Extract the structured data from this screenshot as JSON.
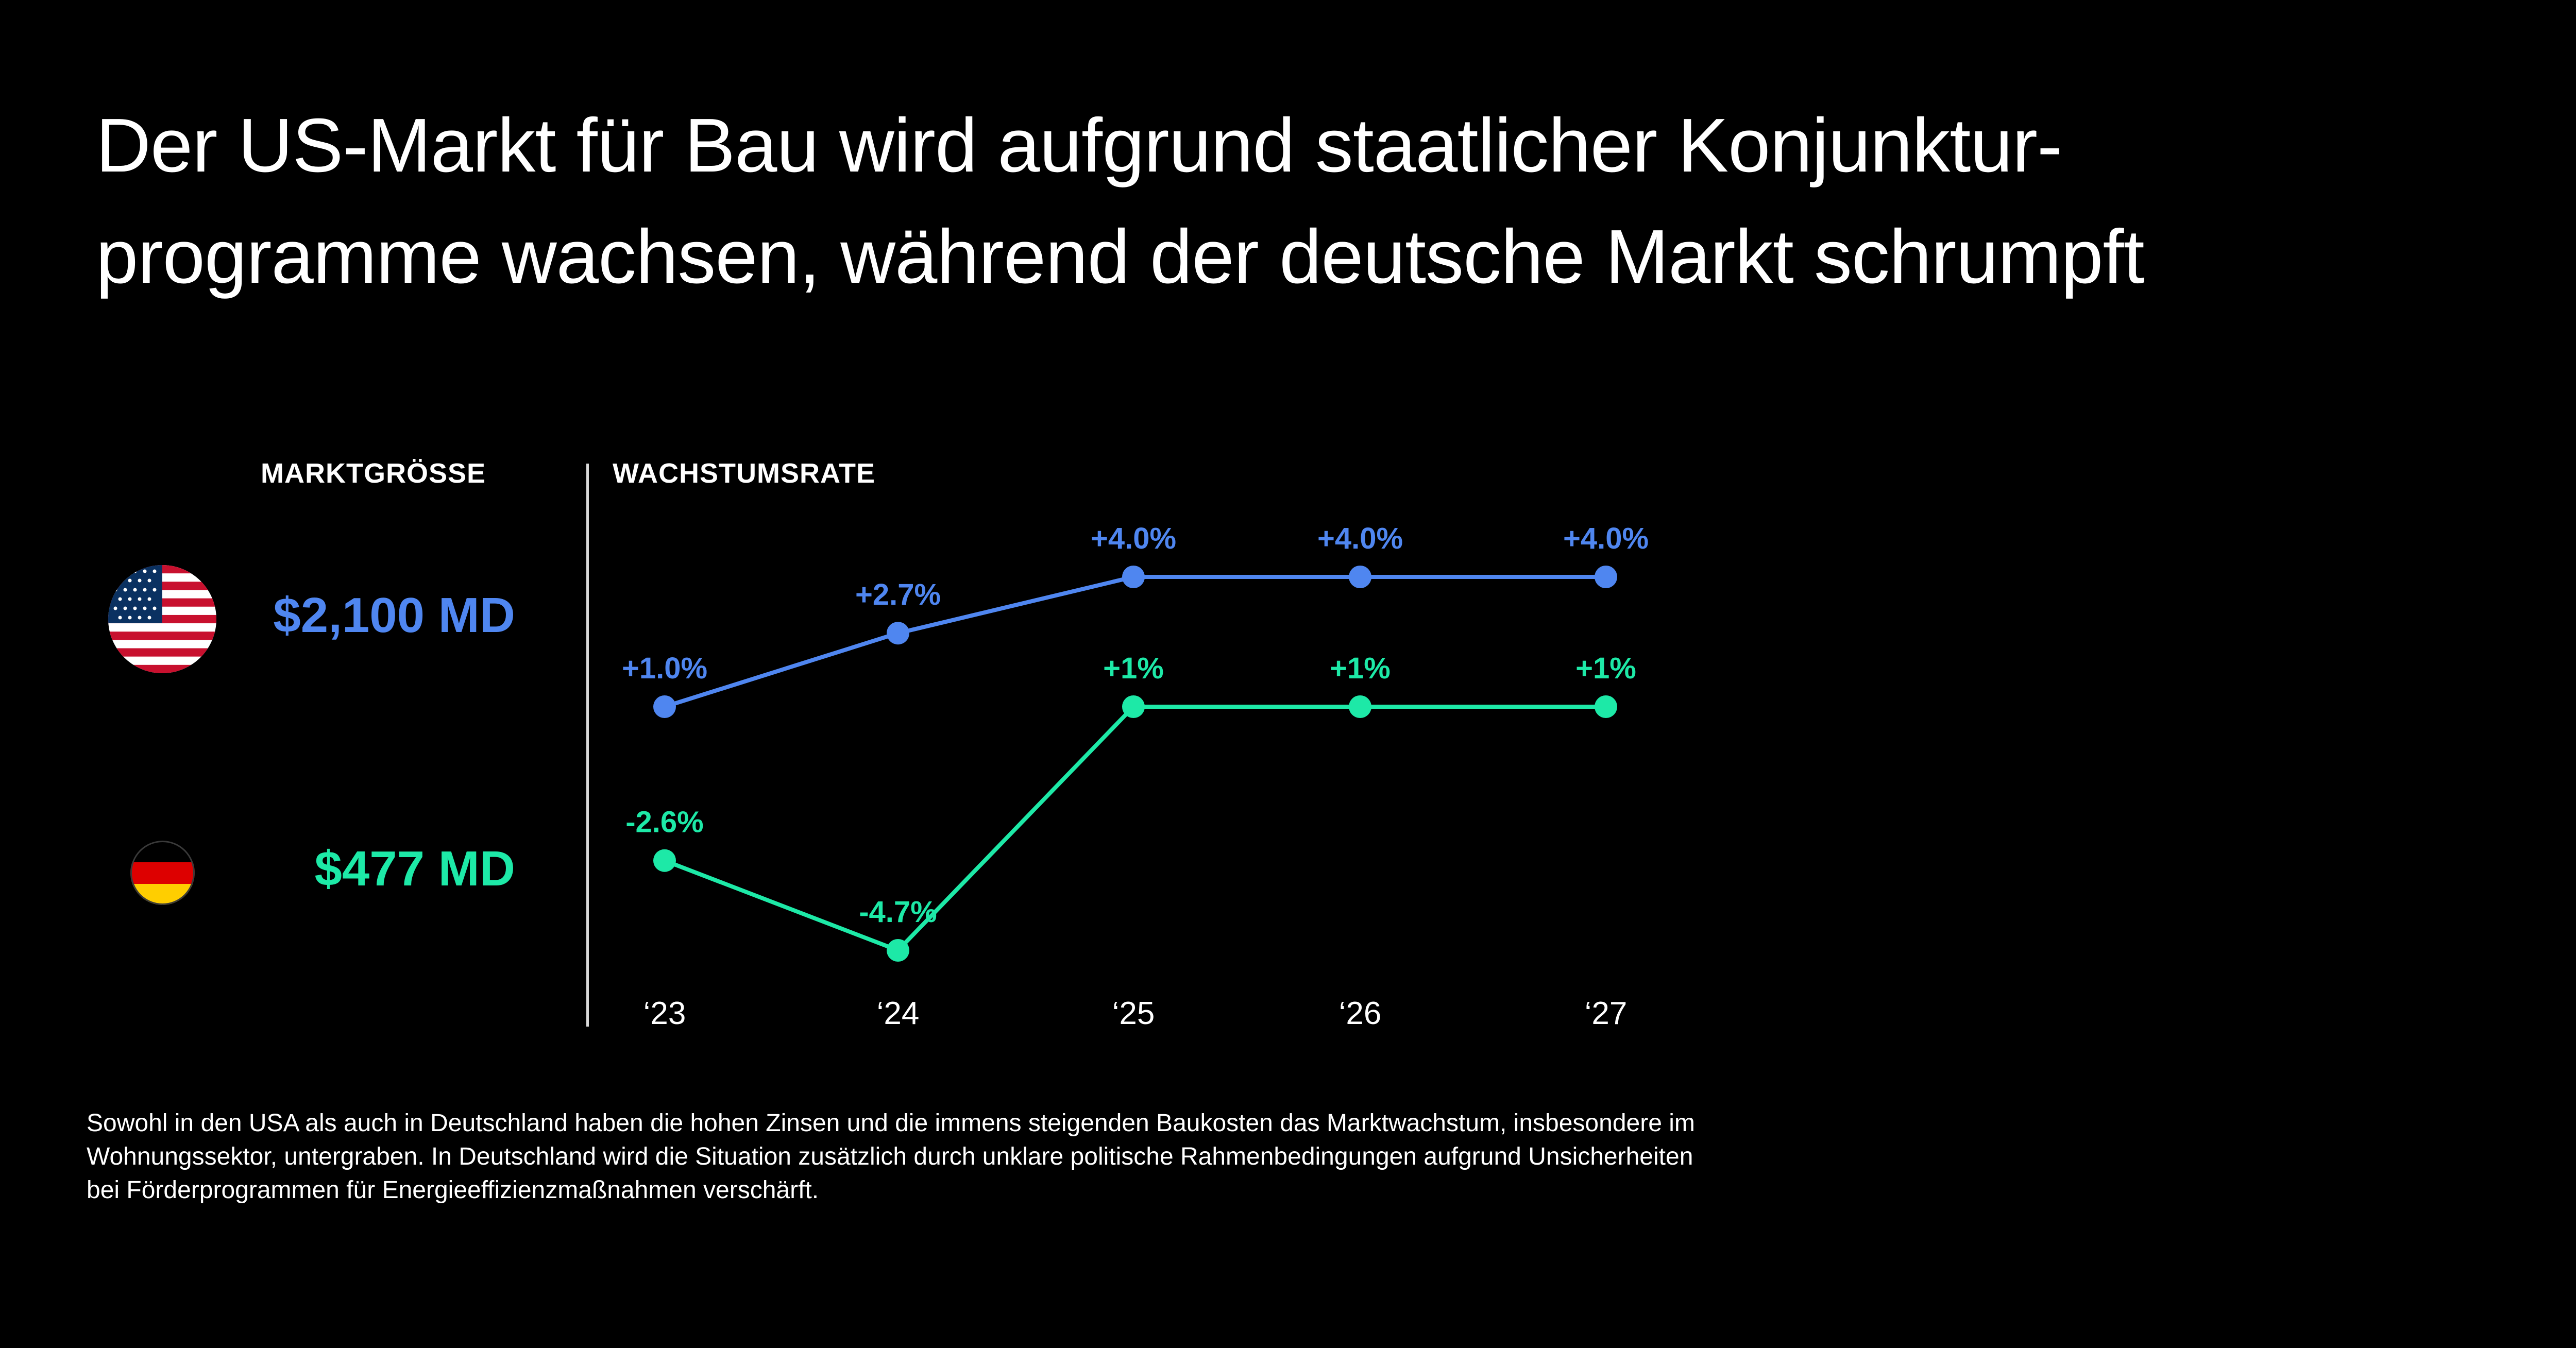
{
  "title": {
    "line1": "Der US-Markt für Bau wird aufgrund staatlicher Konjunktur-",
    "line2": "programme wachsen, während der deutsche Markt schrumpft"
  },
  "headers": {
    "market_size": "MARKTGRÖSSE",
    "growth_rate": "WACHSTUMSRATE"
  },
  "markets": [
    {
      "flag_icon": "us-flag-icon",
      "value": "$2,100 MD",
      "color": "#4f86f0"
    },
    {
      "flag_icon": "germany-flag-icon",
      "value": "$477 MD",
      "color": "#1de9a7"
    }
  ],
  "chart_data": {
    "type": "line",
    "categories": [
      "‘23",
      "‘24",
      "‘25",
      "‘26",
      "‘27"
    ],
    "series": [
      {
        "values": [
          1.0,
          2.7,
          4.0,
          4.0,
          4.0
        ],
        "labels": [
          "+1.0%",
          "+2.7%",
          "+4.0%",
          "+4.0%",
          "+4.0%"
        ],
        "color": "#4f86f0"
      },
      {
        "values": [
          -2.6,
          -4.7,
          1,
          1,
          1
        ],
        "labels": [
          "-2.6%",
          "-4.7%",
          "+1%",
          "+1%",
          "+1%"
        ],
        "color": "#1de9a7"
      }
    ],
    "title": "",
    "xlabel": "",
    "ylabel": "",
    "grid": false
  },
  "footnote": {
    "line1": "Sowohl in den USA als auch in Deutschland haben die hohen Zinsen und die immens steigenden Baukosten das Marktwachstum, insbesondere im",
    "line2": "Wohnungssektor, untergraben. In Deutschland wird die Situation zusätzlich durch unklare politische Rahmenbedingungen aufgrund Unsicherheiten",
    "line3": "bei Förderprogrammen für Energieeffizienzmaßnahmen verschärft."
  }
}
